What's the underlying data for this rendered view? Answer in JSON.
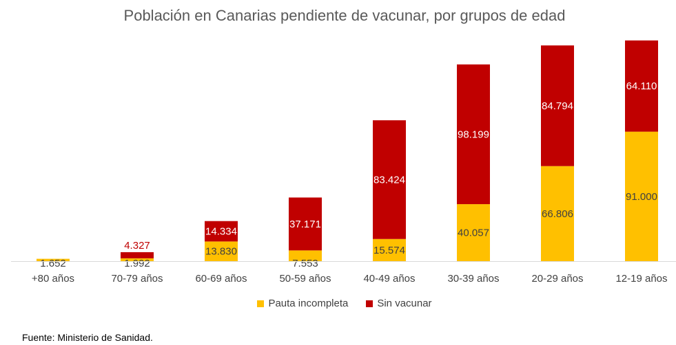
{
  "chart_data": {
    "type": "bar",
    "stacked": true,
    "title": "Población en Canarias pendiente de vacunar, por grupos de edad",
    "categories": [
      "+80 años",
      "70-79 años",
      "60-69 años",
      "50-59 años",
      "40-49 años",
      "30-39 años",
      "20-29 años",
      "12-19 años"
    ],
    "series": [
      {
        "name": "Pauta incompleta",
        "color": "#FFC000",
        "label_color": "#404040",
        "values": [
          1652,
          1992,
          13830,
          7553,
          15574,
          40057,
          66806,
          91000
        ],
        "labels": [
          "1.652",
          "1.992",
          "13.830",
          "7.553",
          "15.574",
          "40.057",
          "66.806",
          "91.000"
        ]
      },
      {
        "name": "Sin vacunar",
        "color": "#C00000",
        "label_color": "#ffffff",
        "values": [
          0,
          4327,
          14334,
          37171,
          83424,
          98199,
          84794,
          64110
        ],
        "labels": [
          "",
          "4.327",
          "14.334",
          "37.171",
          "83.424",
          "98.199",
          "84.794",
          "64.110"
        ]
      }
    ],
    "ylim": [
      0,
      156000
    ],
    "grid": false,
    "legend_position": "bottom"
  },
  "source_note": "Fuente: Ministerio de Sanidad."
}
